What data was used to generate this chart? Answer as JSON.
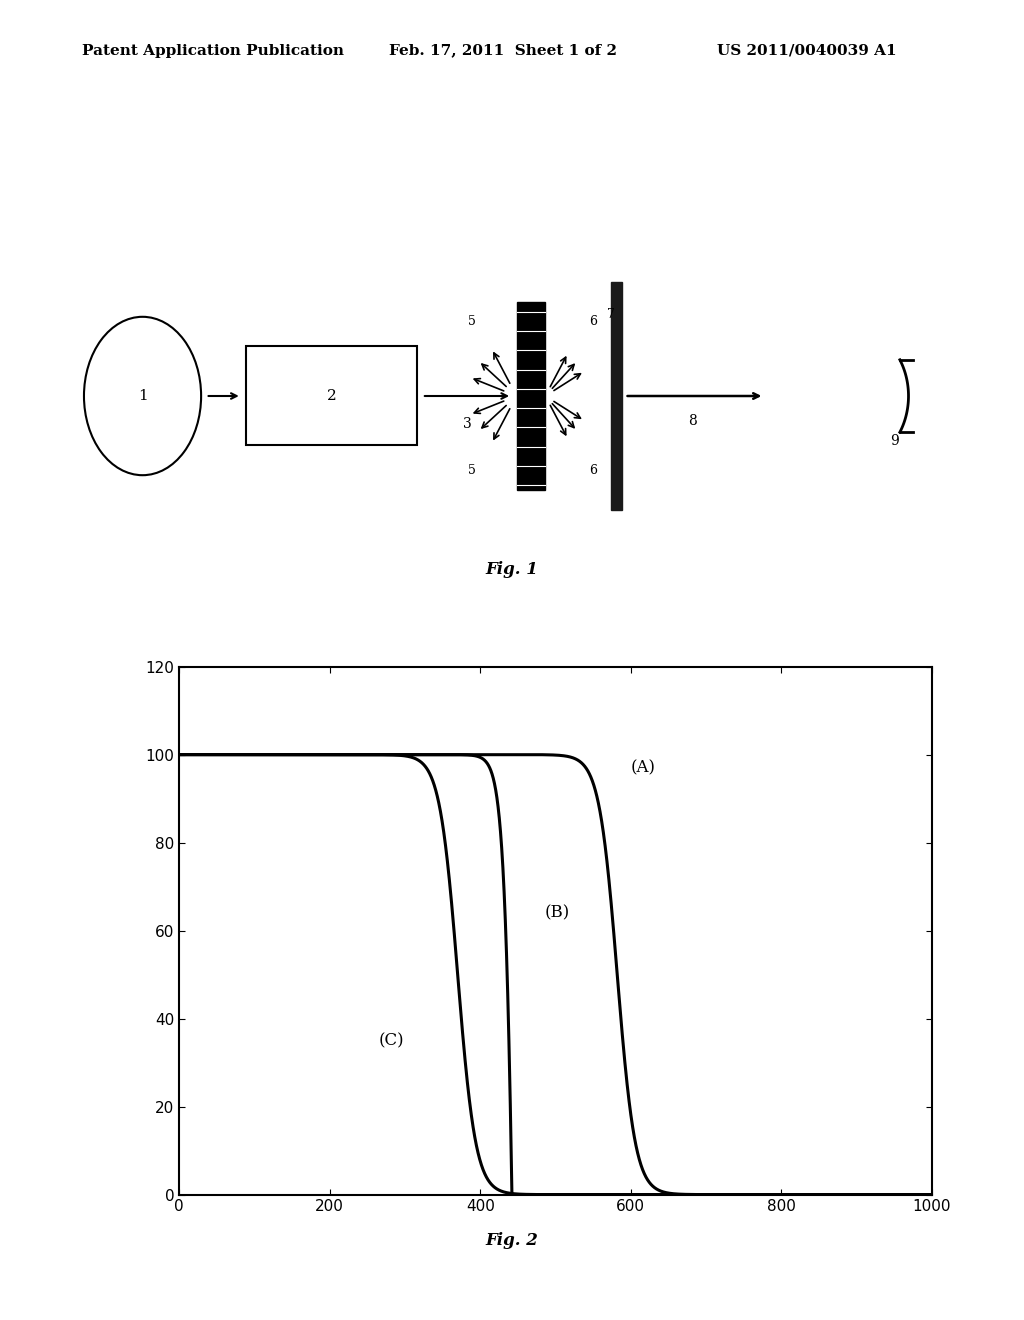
{
  "header_left": "Patent Application Publication",
  "header_center": "Feb. 17, 2011  Sheet 1 of 2",
  "header_right": "US 2011/0040039 A1",
  "fig1_label": "Fig. 1",
  "fig2_label": "Fig. 2",
  "fig2_xlim": [
    0,
    1000
  ],
  "fig2_ylim": [
    0,
    120
  ],
  "fig2_xticks": [
    0,
    200,
    400,
    600,
    800,
    1000
  ],
  "fig2_yticks": [
    0,
    20,
    40,
    60,
    80,
    100,
    120
  ],
  "curve_A_label": "(A)",
  "curve_B_label": "(B)",
  "curve_C_label": "(C)",
  "background_color": "#ffffff",
  "line_color": "#000000",
  "header_fontsize": 11,
  "fig_label_fontsize": 12,
  "tick_fontsize": 11,
  "annotation_fontsize": 12,
  "diagram_fontsize": 10
}
